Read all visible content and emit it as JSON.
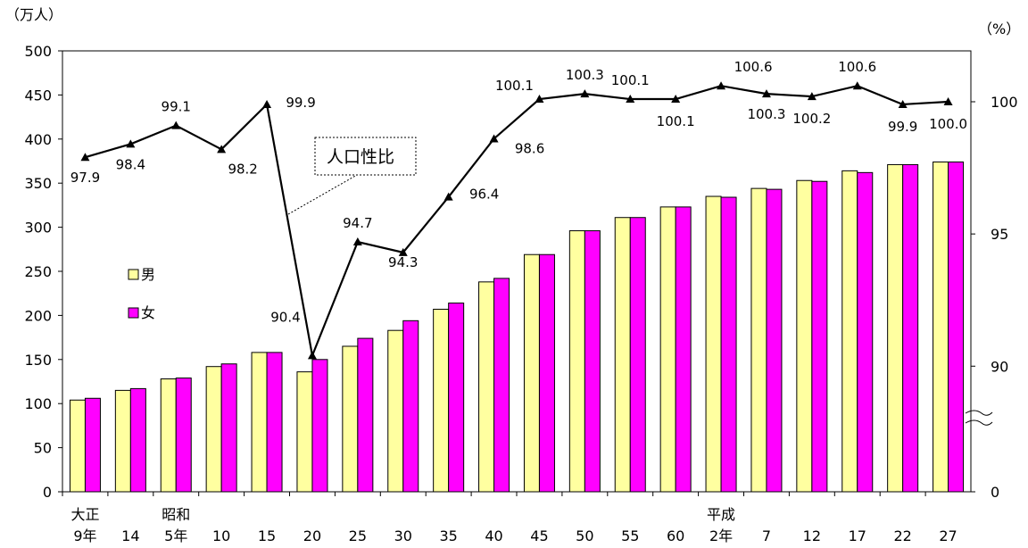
{
  "chart_data": {
    "type": "bar+line",
    "left_axis_unit": "（万人）",
    "right_axis_unit": "（%）",
    "left_ylim": [
      0,
      500
    ],
    "left_ticks": [
      "0",
      "50",
      "100",
      "150",
      "200",
      "250",
      "300",
      "350",
      "400",
      "450",
      "500"
    ],
    "right_ticks": [
      "0",
      "90",
      "95",
      "100"
    ],
    "right_axis_broken": true,
    "right_visible_range": [
      85.25,
      100
    ],
    "categories": [
      {
        "era": "大正",
        "year": "9年"
      },
      {
        "era": "",
        "year": "14"
      },
      {
        "era": "昭和",
        "year": "5年"
      },
      {
        "era": "",
        "year": "10"
      },
      {
        "era": "",
        "year": "15"
      },
      {
        "era": "",
        "year": "20"
      },
      {
        "era": "",
        "year": "25"
      },
      {
        "era": "",
        "year": "30"
      },
      {
        "era": "",
        "year": "35"
      },
      {
        "era": "",
        "year": "40"
      },
      {
        "era": "",
        "year": "45"
      },
      {
        "era": "",
        "year": "50"
      },
      {
        "era": "",
        "year": "55"
      },
      {
        "era": "",
        "year": "60"
      },
      {
        "era": "平成",
        "year": "2年"
      },
      {
        "era": "",
        "year": "7"
      },
      {
        "era": "",
        "year": "12"
      },
      {
        "era": "",
        "year": "17"
      },
      {
        "era": "",
        "year": "22"
      },
      {
        "era": "",
        "year": "27"
      }
    ],
    "series": [
      {
        "name": "男",
        "color": "#ffffa0",
        "values": [
          104,
          115,
          128,
          142,
          158,
          136,
          165,
          183,
          207,
          238,
          269,
          296,
          311,
          323,
          335,
          344,
          353,
          364,
          371,
          374
        ]
      },
      {
        "name": "女",
        "color": "#ff00ff",
        "values": [
          106,
          117,
          129,
          145,
          158,
          150,
          174,
          194,
          214,
          242,
          269,
          296,
          311,
          323,
          334,
          343,
          352,
          362,
          371,
          374
        ]
      }
    ],
    "line": {
      "name": "人口性比",
      "values": [
        97.9,
        98.4,
        99.1,
        98.2,
        99.9,
        90.4,
        94.7,
        94.3,
        96.4,
        98.6,
        100.1,
        100.3,
        100.1,
        100.1,
        100.6,
        100.3,
        100.2,
        100.6,
        99.9,
        100.0
      ],
      "labels": [
        "97.9",
        "98.4",
        "99.1",
        "98.2",
        "99.9",
        "90.4",
        "94.7",
        "94.3",
        "96.4",
        "98.6",
        "100.1",
        "100.3",
        "100.1",
        "100.1",
        "100.6",
        "100.3",
        "100.2",
        "100.6",
        "99.9",
        "100.0"
      ]
    },
    "legend": [
      {
        "label": "男",
        "color": "#ffffa0"
      },
      {
        "label": "女",
        "color": "#ff00ff"
      }
    ],
    "callout": "人口性比"
  }
}
